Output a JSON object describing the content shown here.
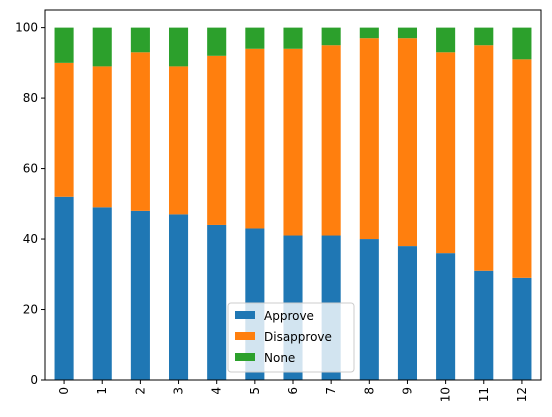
{
  "chart_data": {
    "type": "bar",
    "stacked": true,
    "categories": [
      "0",
      "1",
      "2",
      "3",
      "4",
      "5",
      "6",
      "7",
      "8",
      "9",
      "10",
      "11",
      "12"
    ],
    "series": [
      {
        "name": "Approve",
        "color": "#1f77b4",
        "values": [
          52,
          49,
          48,
          47,
          44,
          43,
          41,
          41,
          40,
          38,
          36,
          31,
          29
        ]
      },
      {
        "name": "Disapprove",
        "color": "#ff7f0e",
        "values": [
          38,
          40,
          45,
          42,
          48,
          51,
          53,
          54,
          57,
          59,
          57,
          64,
          62
        ]
      },
      {
        "name": "None",
        "color": "#2ca02c",
        "values": [
          10,
          11,
          7,
          11,
          8,
          6,
          6,
          5,
          3,
          3,
          7,
          5,
          9
        ]
      }
    ],
    "title": "",
    "xlabel": "",
    "ylabel": "",
    "ylim": [
      0,
      105
    ],
    "yticks": [
      0,
      20,
      40,
      60,
      80,
      100
    ],
    "x_tick_rotation": "vertical",
    "grid": false,
    "legend_position": "lower center"
  }
}
